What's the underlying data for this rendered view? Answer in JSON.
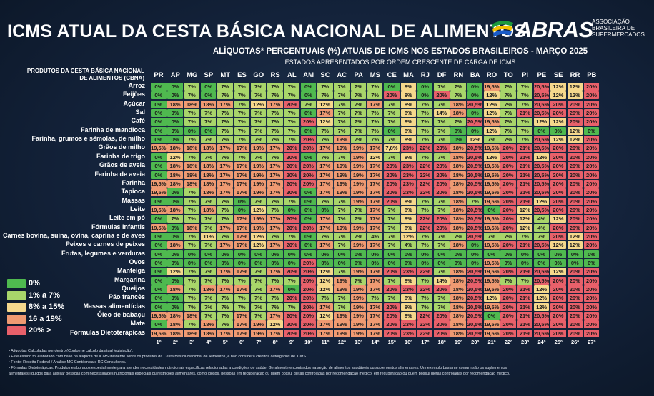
{
  "header": {
    "title": "ICMS ATUAL DA CESTA BÁSICA NACIONAL DE ALIMENTOS",
    "subtitle": "ALÍQUOTAS* PERCENTUAIS (%) ATUAIS DE ICMS NOS ESTADOS BRASILEIROS - MARÇO 2025",
    "subtitle2": "ESTADOS APRESENTADOS POR ORDEM CRESCENTE DE CARGA DE ICMS",
    "products_header_line1": "PRODUTOS DA CESTA BÁSICA NACIONAL",
    "products_header_line2": "DE ALIMENTOS (CBNA)"
  },
  "logo": {
    "name": "ABRAS",
    "line1": "ASSOCIAÇÃO",
    "line2": "BRASILEIRA DE",
    "line3": "SUPERMERCADOS",
    "colors": {
      "green": "#1d9a3c",
      "yellow": "#f2c200",
      "blue": "#1a5cc8"
    }
  },
  "colors": {
    "0": "#4fb94f",
    "1": "#a8d56a",
    "2": "#f5d88c",
    "3": "#ef9a72",
    "4": "#e8606a"
  },
  "legend": [
    {
      "label": "0%",
      "color": "#4fb94f"
    },
    {
      "label": "1% a 7%",
      "color": "#a8d56a"
    },
    {
      "label": "8% a 15%",
      "color": "#f5d88c"
    },
    {
      "label": "16 a 19%",
      "color": "#ef9a72"
    },
    {
      "label": "20% >",
      "color": "#e8606a"
    }
  ],
  "chart_data": {
    "type": "table",
    "states": [
      "PR",
      "AP",
      "MG",
      "SP",
      "MT",
      "ES",
      "GO",
      "RS",
      "AL",
      "AM",
      "SC",
      "AC",
      "PA",
      "MS",
      "CE",
      "MA",
      "RJ",
      "DF",
      "RN",
      "BA",
      "RO",
      "TO",
      "PI",
      "PE",
      "SE",
      "RR",
      "PB"
    ],
    "ranks": [
      "1º",
      "2º",
      "3º",
      "4º",
      "5º",
      "6º",
      "7º",
      "8º",
      "9º",
      "10º",
      "11º",
      "12º",
      "13º",
      "14º",
      "15º",
      "16º",
      "17º",
      "18º",
      "19º",
      "20º",
      "21º",
      "22º",
      "23º",
      "24º",
      "25º",
      "26º",
      "27º"
    ],
    "rows": [
      {
        "product": "Arroz",
        "values": [
          "0%",
          "0%",
          "7%",
          "0%",
          "7%",
          "7%",
          "7%",
          "7%",
          "7%",
          "0%",
          "7%",
          "7%",
          "7%",
          "7%",
          "0%",
          "8%",
          "0%",
          "7%",
          "7%",
          "0%",
          "19,5%",
          "7%",
          "7%",
          "20,5%",
          "12%",
          "12%",
          "20%"
        ]
      },
      {
        "product": "Feijões",
        "values": [
          "0%",
          "0%",
          "7%",
          "0%",
          "7%",
          "7%",
          "7%",
          "7%",
          "7%",
          "0%",
          "7%",
          "7%",
          "7%",
          "7%",
          "20%",
          "8%",
          "0%",
          "20%",
          "7%",
          "0%",
          "12%",
          "7%",
          "7%",
          "20,5%",
          "12%",
          "12%",
          "20%"
        ]
      },
      {
        "product": "Açúcar",
        "values": [
          "0%",
          "18%",
          "18%",
          "18%",
          "17%",
          "7%",
          "12%",
          "17%",
          "20%",
          "7%",
          "12%",
          "7%",
          "7%",
          "17%",
          "7%",
          "8%",
          "7%",
          "7%",
          "18%",
          "20,5%",
          "12%",
          "7%",
          "7%",
          "20,5%",
          "20%",
          "20%",
          "20%"
        ]
      },
      {
        "product": "Sal",
        "values": [
          "0%",
          "0%",
          "7%",
          "7%",
          "7%",
          "7%",
          "7%",
          "7%",
          "7%",
          "0%",
          "17%",
          "7%",
          "7%",
          "7%",
          "7%",
          "8%",
          "7%",
          "14%",
          "18%",
          "0%",
          "12%",
          "7%",
          "21%",
          "20,5%",
          "20%",
          "20%",
          "20%"
        ]
      },
      {
        "product": "Café",
        "values": [
          "0%",
          "0%",
          "7%",
          "7%",
          "7%",
          "7%",
          "7%",
          "7%",
          "7%",
          "20%",
          "12%",
          "7%",
          "7%",
          "7%",
          "7%",
          "8%",
          "7%",
          "7%",
          "7%",
          "20,5%",
          "19,5%",
          "7%",
          "7%",
          "12%",
          "12%",
          "20%",
          "20%"
        ]
      },
      {
        "product": "Farinha de mandioca",
        "values": [
          "0%",
          "0%",
          "0%",
          "0%",
          "7%",
          "7%",
          "7%",
          "7%",
          "7%",
          "0%",
          "7%",
          "7%",
          "7%",
          "7%",
          "0%",
          "8%",
          "7%",
          "7%",
          "0%",
          "0%",
          "12%",
          "7%",
          "7%",
          "0%",
          "0%",
          "12%",
          "0%"
        ]
      },
      {
        "product": "Farinha, grumos e sêmolas, de milho",
        "values": [
          "0%",
          "0%",
          "7%",
          "7%",
          "7%",
          "7%",
          "7%",
          "7%",
          "7%",
          "20%",
          "7%",
          "19%",
          "7%",
          "7%",
          "7%",
          "8%",
          "7%",
          "7%",
          "0%",
          "12%",
          "7%",
          "7%",
          "7%",
          "20,5%",
          "12%",
          "12%",
          "20%"
        ]
      },
      {
        "product": "Grãos de milho",
        "values": [
          "19,5%",
          "18%",
          "18%",
          "18%",
          "17%",
          "17%",
          "19%",
          "17%",
          "20%",
          "20%",
          "17%",
          "19%",
          "19%",
          "17%",
          "7,8%",
          "23%",
          "22%",
          "20%",
          "18%",
          "20,5%",
          "19,5%",
          "20%",
          "21%",
          "20,5%",
          "20%",
          "20%",
          "20%"
        ]
      },
      {
        "product": "Farinha de trigo",
        "values": [
          "0%",
          "12%",
          "7%",
          "7%",
          "7%",
          "7%",
          "7%",
          "7%",
          "20%",
          "0%",
          "7%",
          "7%",
          "19%",
          "12%",
          "7%",
          "8%",
          "7%",
          "7%",
          "18%",
          "20,5%",
          "12%",
          "20%",
          "21%",
          "12%",
          "20%",
          "20%",
          "20%"
        ]
      },
      {
        "product": "Grãos de aveia",
        "values": [
          "0%",
          "18%",
          "18%",
          "18%",
          "17%",
          "17%",
          "19%",
          "17%",
          "20%",
          "20%",
          "17%",
          "19%",
          "19%",
          "17%",
          "20%",
          "23%",
          "22%",
          "20%",
          "18%",
          "20,5%",
          "19,5%",
          "20%",
          "21%",
          "20,5%",
          "20%",
          "20%",
          "20%"
        ]
      },
      {
        "product": "Farinha de aveia",
        "values": [
          "0%",
          "18%",
          "18%",
          "18%",
          "17%",
          "17%",
          "19%",
          "17%",
          "20%",
          "20%",
          "17%",
          "19%",
          "19%",
          "17%",
          "20%",
          "23%",
          "22%",
          "20%",
          "18%",
          "20,5%",
          "19,5%",
          "20%",
          "21%",
          "20,5%",
          "20%",
          "20%",
          "20%"
        ]
      },
      {
        "product": "Farinha",
        "values": [
          "19,5%",
          "18%",
          "18%",
          "18%",
          "17%",
          "17%",
          "19%",
          "17%",
          "20%",
          "20%",
          "17%",
          "19%",
          "19%",
          "17%",
          "20%",
          "23%",
          "22%",
          "20%",
          "18%",
          "20,5%",
          "19,5%",
          "20%",
          "21%",
          "20,5%",
          "20%",
          "20%",
          "20%"
        ]
      },
      {
        "product": "Tapioca",
        "values": [
          "19,5%",
          "0%",
          "7%",
          "18%",
          "17%",
          "17%",
          "19%",
          "17%",
          "20%",
          "0%",
          "17%",
          "19%",
          "19%",
          "17%",
          "20%",
          "23%",
          "22%",
          "20%",
          "18%",
          "20,5%",
          "19,5%",
          "20%",
          "21%",
          "20,5%",
          "20%",
          "20%",
          "20%"
        ]
      },
      {
        "product": "Massas",
        "values": [
          "0%",
          "0%",
          "7%",
          "7%",
          "7%",
          "0%",
          "7%",
          "7%",
          "7%",
          "0%",
          "7%",
          "7%",
          "19%",
          "17%",
          "20%",
          "8%",
          "7%",
          "7%",
          "18%",
          "7%",
          "19,5%",
          "20%",
          "21%",
          "12%",
          "20%",
          "20%",
          "20%"
        ]
      },
      {
        "product": "Leite",
        "values": [
          "19,5%",
          "18%",
          "7%",
          "18%",
          "7%",
          "0%",
          "12%",
          "7%",
          "0%",
          "0%",
          "0%",
          "7%",
          "7%",
          "17%",
          "7%",
          "8%",
          "7%",
          "7%",
          "18%",
          "20,5%",
          "0%",
          "20%",
          "12%",
          "20,5%",
          "20%",
          "20%",
          "20%"
        ]
      },
      {
        "product": "Leite em pó",
        "values": [
          "0%",
          "7%",
          "7%",
          "7%",
          "7%",
          "17%",
          "19%",
          "17%",
          "20%",
          "0%",
          "17%",
          "7%",
          "7%",
          "17%",
          "7%",
          "8%",
          "22%",
          "20%",
          "18%",
          "20,5%",
          "19,5%",
          "20%",
          "12%",
          "4%",
          "12%",
          "20%",
          "20%"
        ]
      },
      {
        "product": "Fórmulas infantis",
        "values": [
          "19,5%",
          "0%",
          "18%",
          "7%",
          "17%",
          "17%",
          "19%",
          "17%",
          "20%",
          "20%",
          "17%",
          "19%",
          "19%",
          "17%",
          "7%",
          "8%",
          "22%",
          "20%",
          "18%",
          "20,5%",
          "19,5%",
          "20%",
          "12%",
          "4%",
          "20%",
          "20%",
          "20%"
        ]
      },
      {
        "product": "Carnes bovina, suína, ovina, caprina e de aves",
        "values": [
          "0%",
          "0%",
          "7%",
          "11%",
          "7%",
          "17%",
          "12%",
          "7%",
          "7%",
          "0%",
          "7%",
          "7%",
          "7%",
          "4%",
          "7%",
          "12%",
          "7%",
          "7%",
          "7%",
          "20,5%",
          "7%",
          "7%",
          "7%",
          "7%",
          "20%",
          "12%",
          "20%"
        ]
      },
      {
        "product": "Peixes e carnes de peixes",
        "values": [
          "0%",
          "18%",
          "7%",
          "7%",
          "17%",
          "17%",
          "12%",
          "17%",
          "20%",
          "0%",
          "17%",
          "7%",
          "19%",
          "17%",
          "7%",
          "4%",
          "7%",
          "7%",
          "18%",
          "0%",
          "19,5%",
          "20%",
          "21%",
          "20,5%",
          "12%",
          "12%",
          "20%"
        ]
      },
      {
        "product": "Frutas, legumes e verduras",
        "values": [
          "0%",
          "0%",
          "0%",
          "0%",
          "0%",
          "0%",
          "0%",
          "0%",
          "0%",
          "0%",
          "0%",
          "0%",
          "0%",
          "0%",
          "0%",
          "0%",
          "0%",
          "0%",
          "0%",
          "0%",
          "0%",
          "0%",
          "0%",
          "0%",
          "0%",
          "0%",
          "0%"
        ]
      },
      {
        "product": "Ovos",
        "values": [
          "0%",
          "0%",
          "0%",
          "0%",
          "0%",
          "0%",
          "0%",
          "0%",
          "0%",
          "20%",
          "0%",
          "0%",
          "0%",
          "0%",
          "0%",
          "0%",
          "0%",
          "0%",
          "0%",
          "0%",
          "19,5%",
          "0%",
          "0%",
          "0%",
          "0%",
          "0%",
          "0%"
        ]
      },
      {
        "product": "Manteiga",
        "values": [
          "0%",
          "12%",
          "7%",
          "7%",
          "17%",
          "17%",
          "7%",
          "17%",
          "20%",
          "20%",
          "12%",
          "7%",
          "19%",
          "17%",
          "20%",
          "23%",
          "22%",
          "7%",
          "18%",
          "20,5%",
          "19,5%",
          "20%",
          "21%",
          "20,5%",
          "12%",
          "20%",
          "20%"
        ]
      },
      {
        "product": "Margarina",
        "values": [
          "0%",
          "0%",
          "7%",
          "7%",
          "7%",
          "7%",
          "7%",
          "7%",
          "7%",
          "20%",
          "12%",
          "19%",
          "7%",
          "17%",
          "7%",
          "8%",
          "7%",
          "14%",
          "18%",
          "20,5%",
          "19,5%",
          "7%",
          "7%",
          "20,5%",
          "20%",
          "20%",
          "20%"
        ]
      },
      {
        "product": "Queijos",
        "values": [
          "0%",
          "18%",
          "7%",
          "18%",
          "17%",
          "17%",
          "7%",
          "17%",
          "0%",
          "20%",
          "12%",
          "19%",
          "19%",
          "17%",
          "20%",
          "23%",
          "22%",
          "20%",
          "18%",
          "20,5%",
          "19,5%",
          "20%",
          "21%",
          "12%",
          "20%",
          "20%",
          "20%"
        ]
      },
      {
        "product": "Pão francês",
        "values": [
          "0%",
          "0%",
          "7%",
          "7%",
          "7%",
          "7%",
          "7%",
          "7%",
          "20%",
          "20%",
          "7%",
          "7%",
          "19%",
          "7%",
          "7%",
          "8%",
          "7%",
          "7%",
          "18%",
          "20,5%",
          "12%",
          "20%",
          "21%",
          "12%",
          "20%",
          "20%",
          "20%"
        ]
      },
      {
        "product": "Massas alimentícias",
        "values": [
          "0%",
          "0%",
          "7%",
          "7%",
          "7%",
          "7%",
          "7%",
          "7%",
          "7%",
          "20%",
          "17%",
          "7%",
          "19%",
          "17%",
          "20%",
          "8%",
          "7%",
          "7%",
          "18%",
          "20,5%",
          "19,5%",
          "20%",
          "21%",
          "12%",
          "20%",
          "20%",
          "20%"
        ]
      },
      {
        "product": "Óleo de babaçu",
        "values": [
          "19,5%",
          "18%",
          "18%",
          "7%",
          "7%",
          "17%",
          "7%",
          "17%",
          "20%",
          "20%",
          "12%",
          "19%",
          "19%",
          "17%",
          "20%",
          "8%",
          "22%",
          "20%",
          "18%",
          "20,5%",
          "0%",
          "20%",
          "21%",
          "20,5%",
          "20%",
          "20%",
          "20%"
        ]
      },
      {
        "product": "Mate",
        "values": [
          "0%",
          "18%",
          "7%",
          "18%",
          "7%",
          "17%",
          "19%",
          "12%",
          "20%",
          "20%",
          "17%",
          "19%",
          "19%",
          "17%",
          "20%",
          "23%",
          "22%",
          "20%",
          "18%",
          "20,5%",
          "19,5%",
          "20%",
          "21%",
          "20,5%",
          "20%",
          "20%",
          "20%"
        ]
      },
      {
        "product": "Fórmulas Dietoterápicas",
        "values": [
          "19,5%",
          "18%",
          "18%",
          "18%",
          "17%",
          "17%",
          "19%",
          "17%",
          "20%",
          "20%",
          "17%",
          "19%",
          "19%",
          "17%",
          "20%",
          "23%",
          "22%",
          "20%",
          "18%",
          "20,5%",
          "19,5%",
          "20%",
          "21%",
          "20,5%",
          "20%",
          "20%",
          "20%"
        ]
      }
    ]
  },
  "notes": [
    "•  Alíquotas Calculadas por dentro (Conforme cálculo da atual legislação).",
    "•  Este estudo foi elaborado com base na alíquota de ICMS incidente sobre os produtos da Cesta Básica Nacional de Alimentos, e não considera créditos outorgados de ICMS.",
    "•  Fonte: Receita Federal  / Análise MG Contécnica e RC Consultores.",
    "•  Fórmulas Dietoterápicas: Produtos elaborados especialmente para atender necessidades nutricionais específicas relacionadas a condições de saúde. Geralmente encontrados na seção de alimentos saudáveis ou suplementos alimentares. Um exemplo bastante comum são os suplementos",
    "    alimentares líquidos para auxiliar pessoas com necessidades nutricionais especiais ou restrições alimentares, como idosos, pessoas em recuperação ou quem possui dietas controladas por recomendação médico, em recuperação ou quem possui dietas controladas por recomendação médico."
  ]
}
